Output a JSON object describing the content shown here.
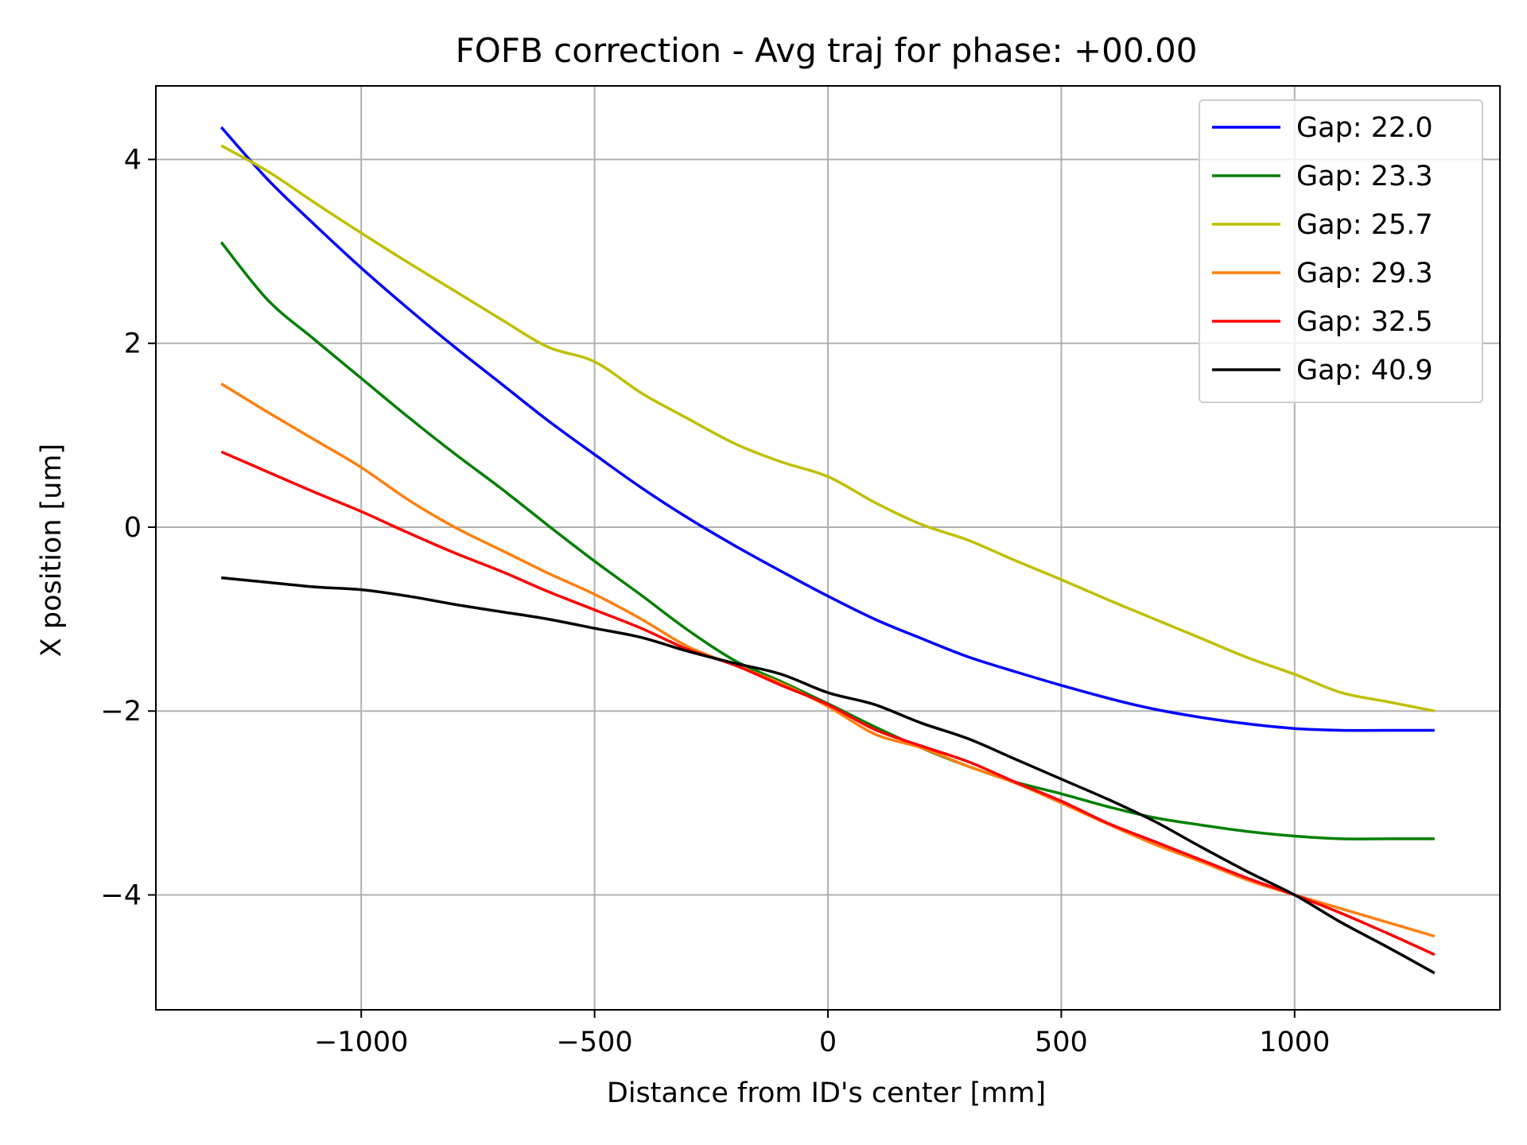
{
  "chart_data": {
    "type": "line",
    "title": "FOFB correction - Avg traj for phase: +00.00",
    "xlabel": "Distance from ID's center [mm]",
    "ylabel": "X position [um]",
    "xlim": [
      -1440,
      1440
    ],
    "ylim": [
      -5.25,
      4.8
    ],
    "xticks": [
      -1000,
      -500,
      0,
      500,
      1000
    ],
    "xtick_labels": [
      "−1000",
      "−500",
      "0",
      "500",
      "1000"
    ],
    "yticks": [
      -4,
      -2,
      0,
      2,
      4
    ],
    "ytick_labels": [
      "−4",
      "−2",
      "0",
      "2",
      "4"
    ],
    "grid": true,
    "legend_position": "top-right",
    "x": [
      -1300,
      -1200,
      -1100,
      -1000,
      -900,
      -800,
      -700,
      -600,
      -500,
      -400,
      -300,
      -200,
      -100,
      0,
      100,
      200,
      300,
      400,
      500,
      600,
      700,
      800,
      900,
      1000,
      1100,
      1200,
      1300
    ],
    "series": [
      {
        "name": "Gap: 22.0",
        "color": "#0000ff",
        "values": [
          4.35,
          3.78,
          3.29,
          2.82,
          2.38,
          1.96,
          1.56,
          1.16,
          0.79,
          0.43,
          0.1,
          -0.2,
          -0.48,
          -0.75,
          -1.0,
          -1.21,
          -1.41,
          -1.57,
          -1.72,
          -1.86,
          -1.98,
          -2.07,
          -2.14,
          -2.19,
          -2.21,
          -2.21,
          -2.21
        ]
      },
      {
        "name": "Gap: 23.3",
        "color": "#008000",
        "values": [
          3.1,
          2.47,
          2.04,
          1.62,
          1.2,
          0.8,
          0.42,
          0.02,
          -0.37,
          -0.74,
          -1.12,
          -1.45,
          -1.68,
          -1.92,
          -2.17,
          -2.4,
          -2.6,
          -2.77,
          -2.9,
          -3.04,
          -3.16,
          -3.24,
          -3.31,
          -3.36,
          -3.39,
          -3.39,
          -3.39
        ]
      },
      {
        "name": "Gap: 25.7",
        "color": "#bfbf00",
        "values": [
          4.15,
          3.87,
          3.53,
          3.2,
          2.88,
          2.57,
          2.26,
          1.96,
          1.8,
          1.46,
          1.18,
          0.91,
          0.71,
          0.55,
          0.27,
          0.03,
          -0.14,
          -0.36,
          -0.57,
          -0.79,
          -1.0,
          -1.21,
          -1.42,
          -1.6,
          -1.8,
          -1.9,
          -2.0
        ]
      },
      {
        "name": "Gap: 29.3",
        "color": "#ff7f0e",
        "values": [
          1.56,
          1.25,
          0.95,
          0.65,
          0.3,
          0.0,
          -0.25,
          -0.5,
          -0.73,
          -1.0,
          -1.3,
          -1.5,
          -1.7,
          -1.95,
          -2.25,
          -2.4,
          -2.6,
          -2.78,
          -3.0,
          -3.23,
          -3.45,
          -3.64,
          -3.84,
          -4.0,
          -4.15,
          -4.3,
          -4.45
        ]
      },
      {
        "name": "Gap: 32.5",
        "color": "#ff0000",
        "values": [
          0.82,
          0.6,
          0.38,
          0.17,
          -0.06,
          -0.28,
          -0.48,
          -0.7,
          -0.9,
          -1.1,
          -1.33,
          -1.5,
          -1.72,
          -1.93,
          -2.2,
          -2.38,
          -2.55,
          -2.77,
          -2.98,
          -3.22,
          -3.42,
          -3.62,
          -3.82,
          -4.0,
          -4.2,
          -4.42,
          -4.65
        ]
      },
      {
        "name": "Gap: 40.9",
        "color": "#000000",
        "values": [
          -0.55,
          -0.6,
          -0.65,
          -0.68,
          -0.75,
          -0.84,
          -0.92,
          -1.0,
          -1.1,
          -1.2,
          -1.35,
          -1.48,
          -1.6,
          -1.8,
          -1.93,
          -2.13,
          -2.3,
          -2.52,
          -2.74,
          -2.96,
          -3.2,
          -3.48,
          -3.75,
          -4.0,
          -4.3,
          -4.57,
          -4.85
        ]
      }
    ]
  }
}
